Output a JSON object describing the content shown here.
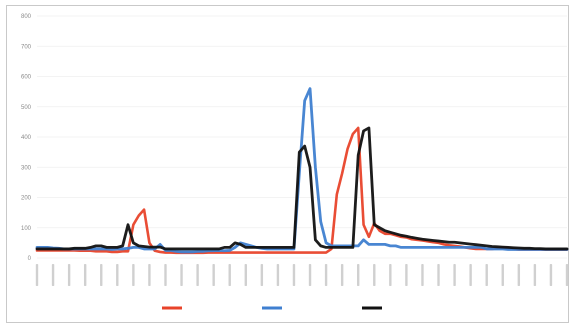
{
  "chart_data": {
    "type": "line",
    "title": "",
    "xlabel": "",
    "ylabel": "",
    "ylim": [
      0,
      800
    ],
    "yticks": [
      0,
      100,
      200,
      300,
      400,
      500,
      600,
      700,
      800
    ],
    "grid": true,
    "legend_position": "bottom",
    "x_tick_labels_legible": false,
    "x_points": 100,
    "colors": [
      "#e8432a",
      "#3f7fd0",
      "#111111"
    ],
    "series": [
      {
        "name": "",
        "values": [
          25,
          25,
          25,
          25,
          25,
          25,
          25,
          25,
          24,
          24,
          24,
          22,
          22,
          22,
          20,
          20,
          22,
          22,
          110,
          140,
          160,
          50,
          24,
          20,
          18,
          18,
          17,
          17,
          17,
          17,
          17,
          17,
          18,
          18,
          18,
          18,
          18,
          18,
          18,
          18,
          18,
          18,
          18,
          18,
          18,
          18,
          18,
          18,
          18,
          18,
          18,
          18,
          18,
          18,
          18,
          30,
          210,
          280,
          360,
          410,
          430,
          110,
          70,
          115,
          90,
          80,
          80,
          75,
          70,
          68,
          62,
          60,
          58,
          55,
          52,
          50,
          45,
          42,
          40,
          38,
          35,
          32,
          30,
          30,
          30,
          30,
          32,
          34,
          32,
          30,
          28,
          28,
          28,
          28,
          28,
          28,
          28,
          28,
          28,
          28
        ]
      },
      {
        "name": "",
        "values": [
          35,
          35,
          35,
          33,
          32,
          30,
          30,
          30,
          30,
          30,
          30,
          30,
          30,
          30,
          28,
          30,
          30,
          32,
          35,
          35,
          30,
          30,
          30,
          45,
          25,
          25,
          22,
          20,
          20,
          20,
          22,
          22,
          24,
          24,
          25,
          24,
          25,
          35,
          50,
          45,
          40,
          35,
          32,
          30,
          30,
          30,
          30,
          30,
          30,
          280,
          520,
          560,
          300,
          120,
          50,
          40,
          40,
          40,
          40,
          40,
          40,
          60,
          45,
          45,
          45,
          45,
          40,
          40,
          35,
          35,
          35,
          35,
          35,
          35,
          35,
          35,
          35,
          35,
          35,
          35,
          35,
          35,
          35,
          35,
          30,
          30,
          30,
          30,
          28,
          28,
          28,
          28,
          28,
          28,
          28,
          28,
          28,
          28,
          28,
          28
        ]
      },
      {
        "name": "",
        "values": [
          30,
          30,
          30,
          30,
          30,
          30,
          30,
          32,
          32,
          32,
          35,
          40,
          40,
          35,
          35,
          35,
          40,
          110,
          50,
          40,
          38,
          36,
          36,
          36,
          30,
          30,
          30,
          30,
          30,
          30,
          30,
          30,
          30,
          30,
          30,
          35,
          35,
          50,
          45,
          35,
          35,
          35,
          35,
          35,
          35,
          35,
          35,
          35,
          35,
          350,
          370,
          300,
          60,
          40,
          35,
          35,
          35,
          35,
          35,
          35,
          340,
          420,
          430,
          110,
          100,
          90,
          85,
          80,
          75,
          72,
          68,
          65,
          62,
          60,
          58,
          56,
          54,
          52,
          52,
          50,
          48,
          46,
          44,
          42,
          40,
          38,
          37,
          36,
          35,
          34,
          33,
          32,
          32,
          31,
          31,
          30,
          30,
          30,
          30,
          30
        ]
      }
    ]
  }
}
